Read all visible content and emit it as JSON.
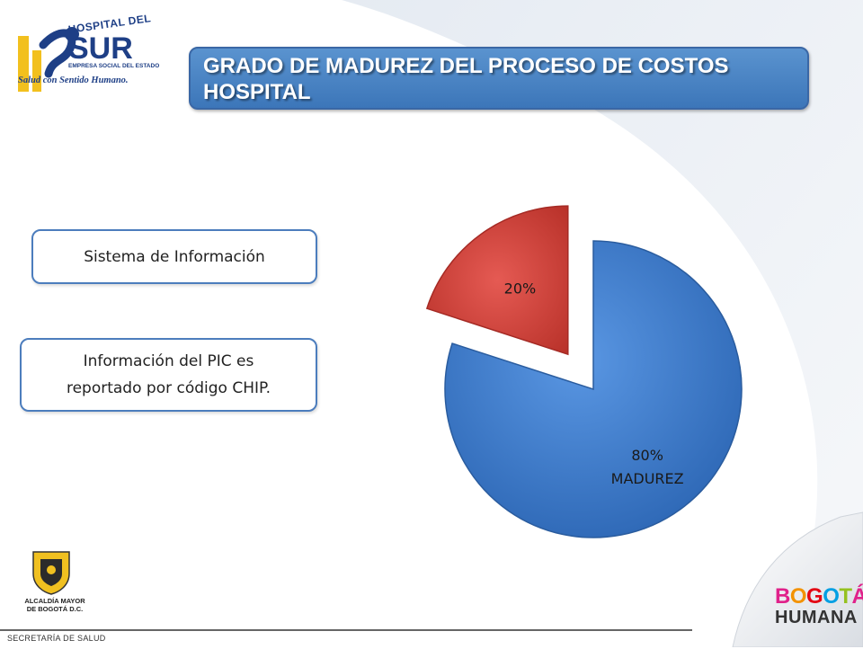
{
  "slide": {
    "title_line1": "GRADO DE MADUREZ DEL PROCESO DE COSTOS",
    "title_line2": "HOSPITAL",
    "box_system": "Sistema de Información",
    "box_pic_line1": "Información del PIC  es",
    "box_pic_line2": "reportado por código CHIP."
  },
  "logo": {
    "name_top": "HOSPITAL DEL",
    "name_main": "SUR",
    "name_sub": "EMPRESA SOCIAL DEL ESTADO",
    "slogan": "Salud con Sentido Humano."
  },
  "footer": {
    "alcaldia_line1": "ALCALDÍA MAYOR",
    "alcaldia_line2": "DE BOGOTÁ D.C.",
    "secretaria": "SECRETARÍA DE SALUD",
    "bogota_line1": "BOGOTÁ",
    "bogota_line2": "HUMANA"
  },
  "chart_data": {
    "type": "pie",
    "slices": [
      {
        "label": "MADUREZ",
        "value": 80,
        "value_text": "80%",
        "color": "#3f7fd2",
        "exploded": false
      },
      {
        "label": "",
        "value": 20,
        "value_text": "20%",
        "color": "#d43f3a",
        "exploded": true
      }
    ],
    "legend": "none"
  },
  "colors": {
    "banner": "#4a86c8",
    "box_border": "#4c7dbd",
    "slice_blue": "#3f7fd2",
    "slice_red": "#d43f3a"
  }
}
